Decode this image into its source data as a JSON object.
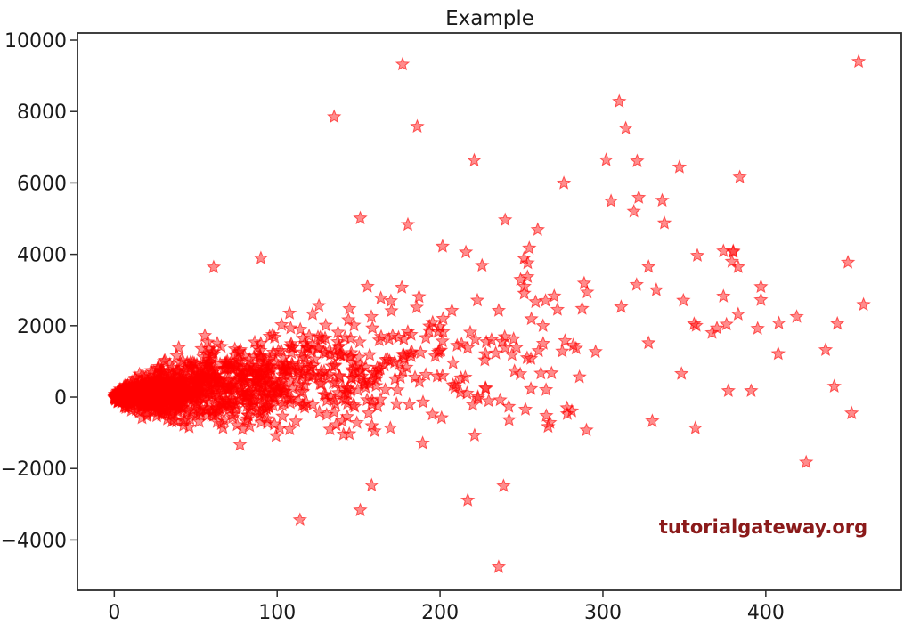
{
  "chart_data": {
    "type": "scatter",
    "title": "Example",
    "xlabel": "",
    "ylabel": "",
    "xlim": [
      -22.6,
      483.2
    ],
    "ylim": [
      -5411,
      10200
    ],
    "grid": false,
    "legend": null,
    "xticks": {
      "values": [
        0,
        100,
        200,
        300,
        400
      ],
      "labels": [
        "0",
        "100",
        "200",
        "300",
        "400"
      ]
    },
    "yticks": {
      "values": [
        -4000,
        -2000,
        0,
        2000,
        4000,
        6000,
        8000,
        10000
      ],
      "labels": [
        "−4000",
        "−2000",
        "0",
        "2000",
        "4000",
        "6000",
        "8000",
        "10000"
      ]
    },
    "marker": {
      "shape": "star-5",
      "color": "#ff0000",
      "fill_alpha": 0.45,
      "edge_alpha": 0.6,
      "outer_radius_px": 7.3,
      "inner_ratio": 0.44
    },
    "point_count_estimate": 1450,
    "cloud_model": {
      "seed": 42,
      "count": 1400,
      "x_exponential_scale": 75,
      "x_max": 460,
      "y_mean_slope": 5,
      "y_noise_sqrt_coeff": 55,
      "y_noise_linear_coeff": 4,
      "y_min": -5000,
      "y_max": 9600
    },
    "notable_points": [
      [
        177,
        9320
      ],
      [
        457,
        9400
      ],
      [
        310,
        8280
      ],
      [
        135,
        7850
      ],
      [
        186,
        7580
      ],
      [
        314,
        7530
      ],
      [
        221,
        6630
      ],
      [
        302,
        6640
      ],
      [
        321,
        6610
      ],
      [
        347,
        6440
      ],
      [
        384,
        6160
      ],
      [
        276,
        5990
      ],
      [
        322,
        5590
      ],
      [
        305,
        5490
      ],
      [
        319,
        5200
      ],
      [
        151,
        5010
      ],
      [
        240,
        4960
      ],
      [
        260,
        4690
      ],
      [
        374,
        4090
      ],
      [
        380,
        4090
      ],
      [
        358,
        3965
      ],
      [
        397,
        3090
      ],
      [
        397,
        2720
      ],
      [
        374,
        2820
      ],
      [
        383,
        2320
      ],
      [
        419,
        2250
      ],
      [
        408,
        2070
      ],
      [
        395,
        1920
      ],
      [
        370,
        1930
      ],
      [
        367,
        1800
      ],
      [
        356,
        2050
      ],
      [
        460,
        2590
      ],
      [
        442,
        300
      ],
      [
        377,
        175
      ],
      [
        391,
        175
      ],
      [
        90,
        3890
      ],
      [
        61,
        3640
      ],
      [
        236,
        -4760
      ],
      [
        114,
        -3440
      ],
      [
        151,
        -3170
      ],
      [
        217,
        -2890
      ],
      [
        239,
        -2490
      ],
      [
        158,
        -2470
      ]
    ]
  },
  "watermark": {
    "text": "tutorialgateway.org",
    "color": "#8b1a1a"
  },
  "colors": {
    "axis": "#2b2b2b",
    "text": "#1a1a1a",
    "background": "#ffffff"
  }
}
